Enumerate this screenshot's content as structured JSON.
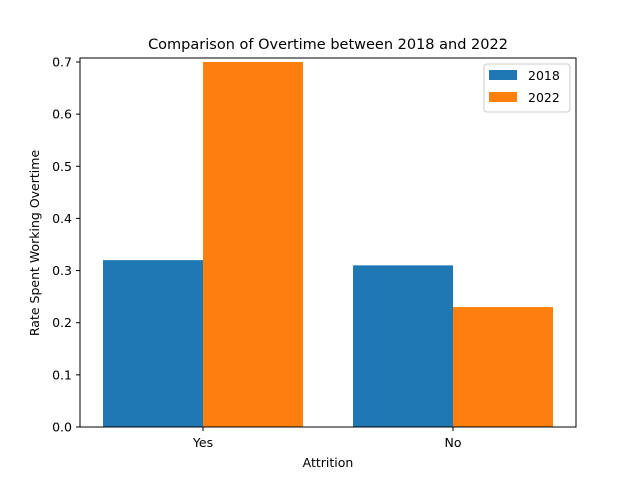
{
  "chart_data": {
    "type": "bar",
    "title": "Comparison of Overtime between 2018 and 2022",
    "xlabel": "Attrition",
    "ylabel": "Rate Spent Working Overtime",
    "categories": [
      "Yes",
      "No"
    ],
    "series": [
      {
        "name": "2018",
        "values": [
          0.32,
          0.31
        ],
        "color": "#1f77b4"
      },
      {
        "name": "2022",
        "values": [
          0.7,
          0.23
        ],
        "color": "#ff7f0e"
      }
    ],
    "ylim": [
      0,
      0.7
    ],
    "yticks": [
      "0.0",
      "0.1",
      "0.2",
      "0.3",
      "0.4",
      "0.5",
      "0.6",
      "0.7"
    ],
    "grid": false,
    "legend_position": "top-right"
  }
}
